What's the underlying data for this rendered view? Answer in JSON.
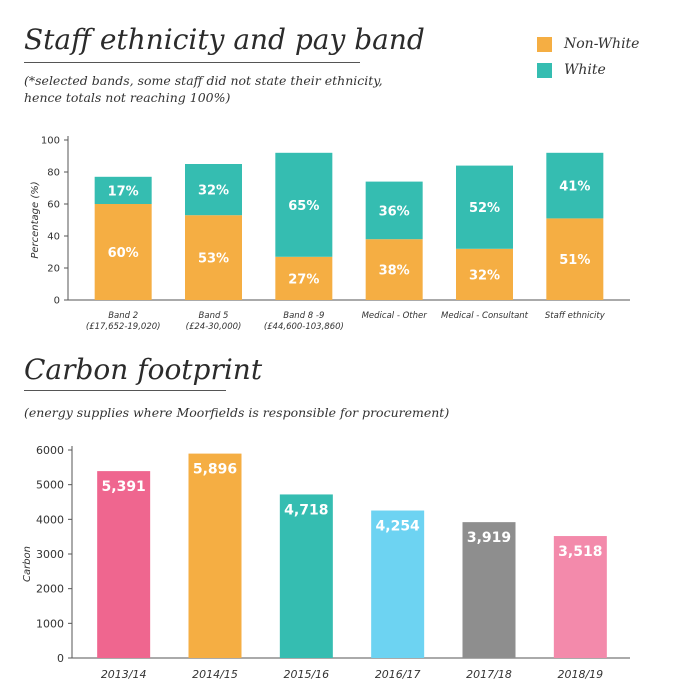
{
  "section1": {
    "title": "Staff ethnicity and pay band",
    "subtitle_line1": "(*selected bands, some staff did not state their ethnicity,",
    "subtitle_line2": "hence totals not reaching 100%)"
  },
  "section2": {
    "title": "Carbon footprint",
    "subtitle": "(energy supplies where Moorfields is responsible for procurement)"
  },
  "chart_data": [
    {
      "type": "bar",
      "stacked": true,
      "title": "Staff ethnicity and pay band",
      "categories": [
        [
          "Band 2",
          "(£17,652-19,020)"
        ],
        [
          "Band 5",
          "(£24-30,000)"
        ],
        [
          "Band 8 -9",
          "(£44,600-103,860)"
        ],
        [
          "Medical - Other"
        ],
        [
          "Medical - Consultant"
        ],
        [
          "Staff ethnicity"
        ]
      ],
      "series": [
        {
          "name": "Non-White",
          "color": "#F5AE43",
          "values": [
            60,
            53,
            27,
            38,
            32,
            51
          ],
          "labels": [
            "60%",
            "53%",
            "27%",
            "38%",
            "32%",
            "51%"
          ]
        },
        {
          "name": "White",
          "color": "#35BDB1",
          "values": [
            17,
            32,
            65,
            36,
            52,
            41
          ],
          "labels": [
            "17%",
            "32%",
            "65%",
            "36%",
            "52%",
            "41%"
          ]
        }
      ],
      "ylabel": "Percentage (%)",
      "ylim": [
        0,
        100
      ],
      "yticks": [
        "0",
        "20",
        "40",
        "60",
        "80",
        "100"
      ],
      "legend": "top-right"
    },
    {
      "type": "bar",
      "title": "Carbon footprint",
      "categories": [
        "2013/14",
        "2014/15",
        "2015/16",
        "2016/17",
        "2017/18",
        "2018/19"
      ],
      "values": [
        5391,
        5896,
        4718,
        4254,
        3919,
        3518
      ],
      "labels": [
        "5,391",
        "5,896",
        "4,718",
        "4,254",
        "3,919",
        "3,518"
      ],
      "colors": [
        "#EF668F",
        "#F5AE43",
        "#35BDB1",
        "#6DD3F2",
        "#8E8E8E",
        "#F38AAB"
      ],
      "ylabel": "Carbon",
      "ylim": [
        0,
        6000
      ],
      "yticks": [
        "0",
        "1000",
        "2000",
        "3000",
        "4000",
        "5000",
        "6000"
      ]
    }
  ]
}
